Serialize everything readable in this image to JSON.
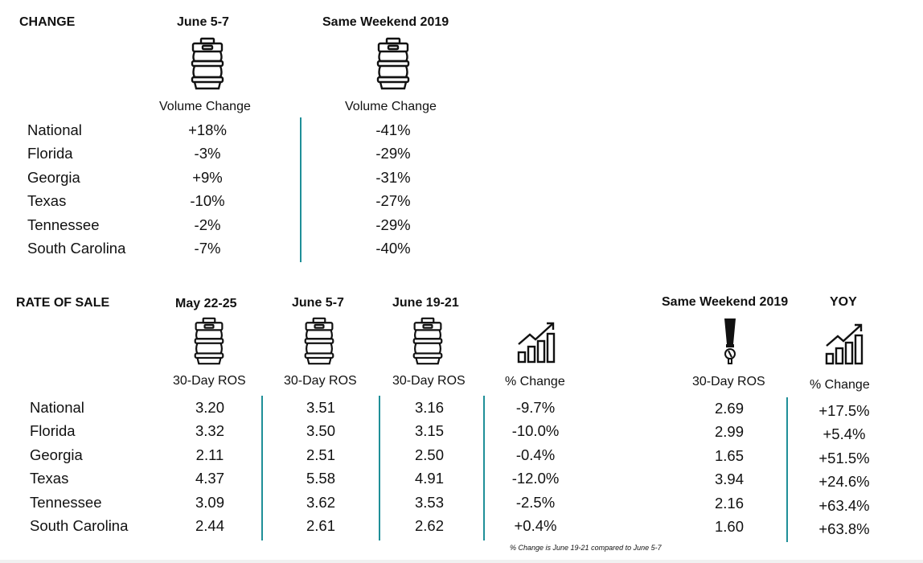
{
  "change": {
    "section_title": "CHANGE",
    "columns": [
      {
        "header": "June 5-7",
        "icon": "keg-icon",
        "subheader": "Volume Change"
      },
      {
        "header": "Same Weekend 2019",
        "icon": "keg-icon",
        "subheader": "Volume Change"
      }
    ],
    "rows": [
      {
        "state": "National",
        "values": [
          "+18%",
          "-41%"
        ]
      },
      {
        "state": "Florida",
        "values": [
          "-3%",
          "-29%"
        ]
      },
      {
        "state": "Georgia",
        "values": [
          "+9%",
          "-31%"
        ]
      },
      {
        "state": "Texas",
        "values": [
          "-10%",
          "-27%"
        ]
      },
      {
        "state": "Tennessee",
        "values": [
          "-2%",
          "-29%"
        ]
      },
      {
        "state": "South Carolina",
        "values": [
          "-7%",
          "-40%"
        ]
      }
    ]
  },
  "rate_of_sale": {
    "section_title": "RATE OF SALE",
    "columns": [
      {
        "header": "May 22-25",
        "icon": "keg-icon",
        "subheader": "30-Day ROS"
      },
      {
        "header": "June 5-7",
        "icon": "keg-icon",
        "subheader": "30-Day ROS"
      },
      {
        "header": "June 19-21",
        "icon": "keg-icon",
        "subheader": "30-Day ROS"
      },
      {
        "header": "",
        "icon": "growth-chart-icon",
        "subheader": "% Change"
      },
      {
        "header": "Same Weekend 2019",
        "icon": "beer-tap-icon",
        "subheader": "30-Day ROS"
      },
      {
        "header": "YOY",
        "icon": "growth-chart-icon",
        "subheader": "% Change"
      }
    ],
    "rows": [
      {
        "state": "National",
        "values": [
          "3.20",
          "3.51",
          "3.16",
          "-9.7%",
          "2.69",
          "+17.5%"
        ]
      },
      {
        "state": "Florida",
        "values": [
          "3.32",
          "3.50",
          "3.15",
          "-10.0%",
          "2.99",
          "+5.4%"
        ]
      },
      {
        "state": "Georgia",
        "values": [
          "2.11",
          "2.51",
          "2.50",
          "-0.4%",
          "1.65",
          "+51.5%"
        ]
      },
      {
        "state": "Texas",
        "values": [
          "4.37",
          "5.58",
          "4.91",
          "-12.0%",
          "3.94",
          "+24.6%"
        ]
      },
      {
        "state": "Tennessee",
        "values": [
          "3.09",
          "3.62",
          "3.53",
          "-2.5%",
          "2.16",
          "+63.4%"
        ]
      },
      {
        "state": "South Carolina",
        "values": [
          "2.44",
          "2.61",
          "2.62",
          "+0.4%",
          "1.60",
          "+63.8%"
        ]
      }
    ],
    "footnote": "% Change is June 19-21 compared to June 5-7"
  },
  "colors": {
    "divider": "#1f8f98",
    "text": "#111111"
  }
}
